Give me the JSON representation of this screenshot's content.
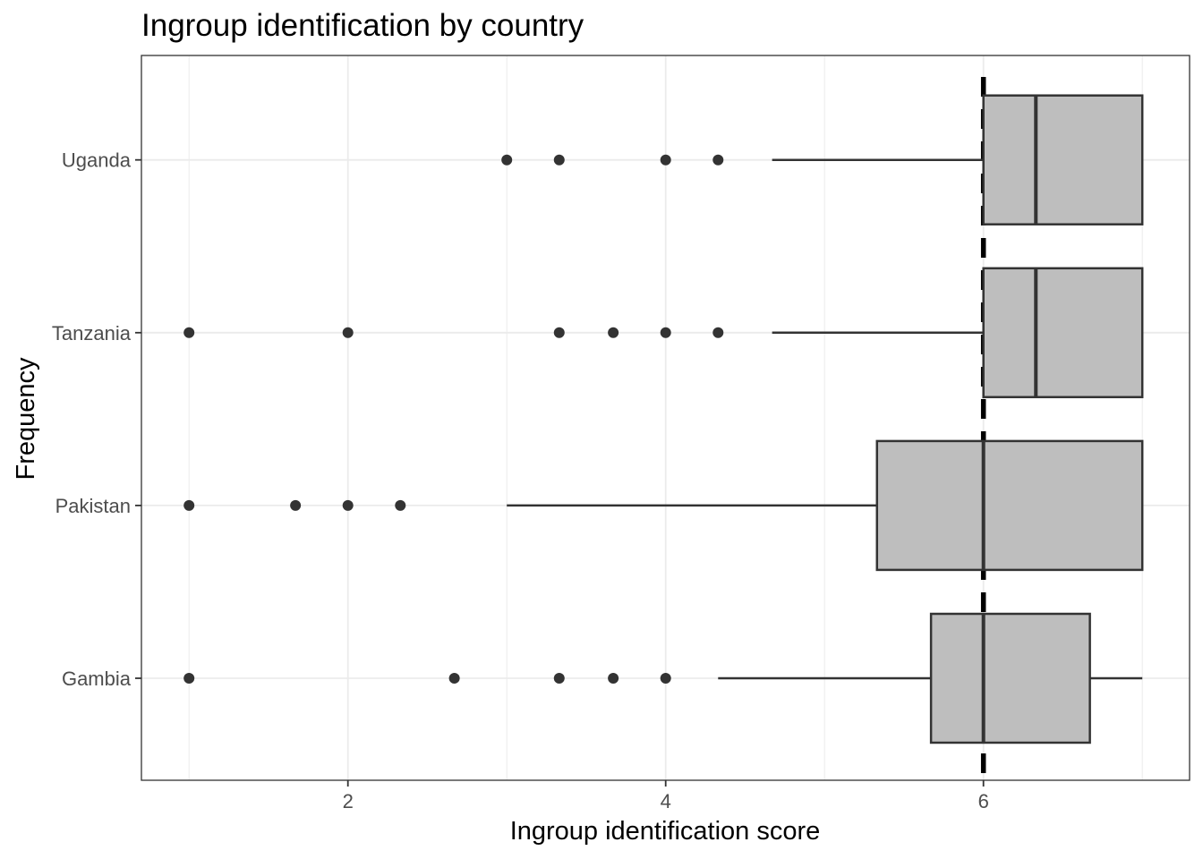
{
  "chart_data": {
    "type": "boxplot",
    "orientation": "horizontal",
    "title": "Ingroup identification by country",
    "xlabel": "Ingroup identification score",
    "ylabel": "Frequency",
    "xlim": [
      0.7,
      7.3
    ],
    "x_ticks": [
      2,
      4,
      6
    ],
    "x_tick_labels": [
      "2",
      "4",
      "6"
    ],
    "grid": true,
    "reference_line": {
      "x": 6,
      "style": "dashed"
    },
    "colors": {
      "box_fill": "#bebebe",
      "box_stroke": "#333333",
      "outlier": "#333333",
      "grid": "#ebebeb",
      "reference": "#000000"
    },
    "categories": [
      "Gambia",
      "Pakistan",
      "Tanzania",
      "Uganda"
    ],
    "boxes": [
      {
        "category": "Gambia",
        "whisker_low": 4.33,
        "q1": 5.67,
        "median": 6.0,
        "q3": 6.67,
        "whisker_high": 7.0,
        "outliers": [
          1.0,
          2.67,
          3.33,
          3.67,
          4.0
        ]
      },
      {
        "category": "Pakistan",
        "whisker_low": 3.0,
        "q1": 5.33,
        "median": 6.0,
        "q3": 7.0,
        "whisker_high": 7.0,
        "outliers": [
          1.0,
          1.67,
          2.0,
          2.33
        ]
      },
      {
        "category": "Tanzania",
        "whisker_low": 4.67,
        "q1": 6.0,
        "median": 6.33,
        "q3": 7.0,
        "whisker_high": 7.0,
        "outliers": [
          1.0,
          2.0,
          3.33,
          3.67,
          4.0,
          4.33
        ]
      },
      {
        "category": "Uganda",
        "whisker_low": 4.67,
        "q1": 6.0,
        "median": 6.33,
        "q3": 7.0,
        "whisker_high": 7.0,
        "outliers": [
          3.0,
          3.33,
          4.0,
          4.33
        ]
      }
    ]
  }
}
